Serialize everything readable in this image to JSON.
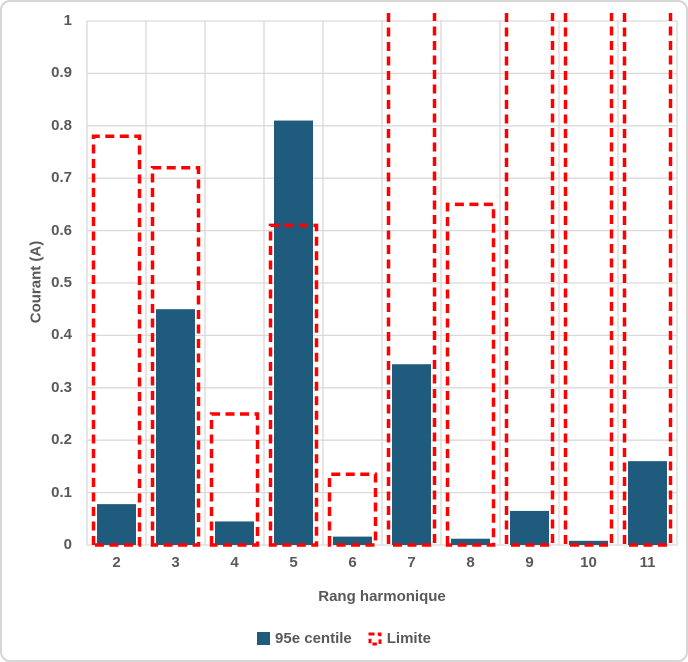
{
  "chart_data": {
    "type": "bar",
    "title": "",
    "xlabel": "Rang harmonique",
    "ylabel": "Courant (A)",
    "categories": [
      "2",
      "3",
      "4",
      "5",
      "6",
      "7",
      "8",
      "9",
      "10",
      "11"
    ],
    "y_ticks": [
      "1",
      "0.9",
      "0.8",
      "0.7",
      "0.6",
      "0.5",
      "0.4",
      "0.3",
      "0.2",
      "0.1",
      "0"
    ],
    "ylim": [
      0,
      1
    ],
    "grid": "horizontal lines every 0.1 plus vertical category boundary lines",
    "legend_position": "bottom-center",
    "series": [
      {
        "name": "95e centile",
        "style": "solid-bar",
        "color": "#1f5b7d",
        "values": [
          0.078,
          0.45,
          0.045,
          0.81,
          0.016,
          0.345,
          0.012,
          0.065,
          0.008,
          0.16
        ]
      },
      {
        "name": "Limite",
        "style": "dashed-outline-bar",
        "color": "#ff0000",
        "values": [
          0.78,
          0.72,
          0.25,
          0.61,
          0.135,
          1,
          0.65,
          1,
          1,
          1
        ],
        "clipped_at_top": [
          false,
          false,
          false,
          false,
          false,
          true,
          false,
          true,
          true,
          true
        ],
        "note": "clipped_at_top bars exceed the axis maximum of 1 and are drawn without a top edge"
      }
    ],
    "colors": {
      "gridline": "#d9d9d9",
      "axis_text": "#595959",
      "frame_border": "#d6d6d6",
      "background": "#ffffff"
    }
  }
}
